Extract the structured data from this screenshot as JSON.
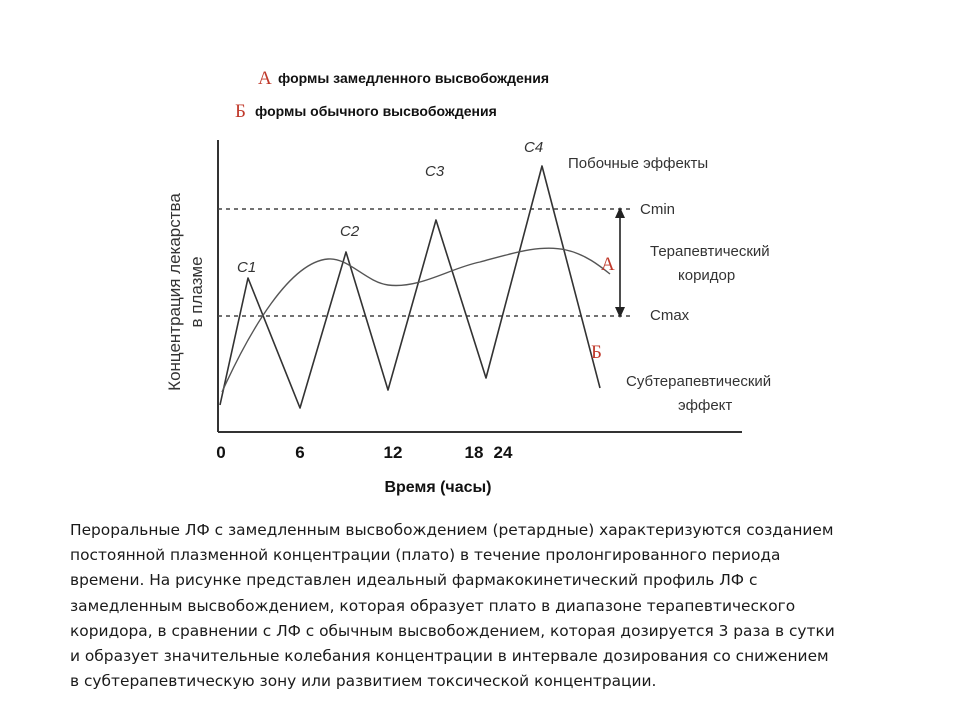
{
  "legend": {
    "a_key": "А",
    "a_text": "формы замедленного высвобождения",
    "b_key": "Б",
    "b_text": "формы обычного высвобождения"
  },
  "axes": {
    "ylabel_line1": "Концентрация лекарства",
    "ylabel_line2": "в плазме",
    "xlabel": "Время (часы)",
    "x_ticks": [
      "0",
      "6",
      "12",
      "18",
      "24"
    ]
  },
  "peaks": [
    "C1",
    "C2",
    "C3",
    "C4"
  ],
  "annotations": {
    "side_effects": "Побочные эффекты",
    "cmin": "Cmin",
    "corridor_line1": "Терапевтический",
    "corridor_line2": "коридор",
    "cmax": "Cmax",
    "curve_a": "А",
    "curve_b": "Б",
    "sub_line1": "Субтерапевтический",
    "sub_line2": "эффект"
  },
  "colors": {
    "curve": "#333333",
    "legend_key": "#c0392b"
  },
  "caption_lines": [
    "Пероральные ЛФ с замедленным высвобождением (ретардные) характеризуются созданием",
    "постоянной плазменной концентрации (плато) в течение пролонгированного периода",
    "времени. На рисунке  представлен идеальный фармакокинетический профиль ЛФ с",
    "замедленным высвобождением, которая образует плато в диапазоне терапевтического",
    "коридора, в сравнении с ЛФ с обычным высвобождением, которая дозируется 3 раза в сутки",
    "и образует значительные колебания концентрации в интервале дозирования со снижением",
    "в субтерапевтическую зону или развитием токсической концентрации."
  ]
}
